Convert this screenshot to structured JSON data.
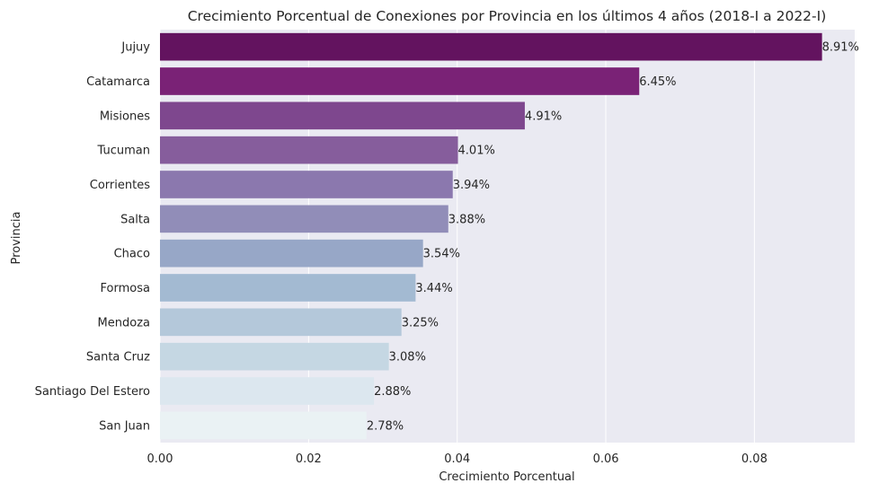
{
  "chart_data": {
    "type": "bar",
    "orientation": "horizontal",
    "title": "Crecimiento Porcentual de Conexiones por Provincia en los últimos 4 años (2018-I a 2022-I)",
    "xlabel": "Crecimiento Porcentual",
    "ylabel": "Provincia",
    "xlim": [
      0,
      0.0935
    ],
    "xticks": [
      0.0,
      0.02,
      0.04,
      0.06,
      0.08
    ],
    "xtick_labels": [
      "0.00",
      "0.02",
      "0.04",
      "0.06",
      "0.08"
    ],
    "grid": true,
    "background": "#eaeaf2",
    "categories": [
      "Jujuy",
      "Catamarca",
      "Misiones",
      "Tucuman",
      "Corrientes",
      "Salta",
      "Chaco",
      "Formosa",
      "Mendoza",
      "Santa Cruz",
      "Santiago Del Estero",
      "San Juan"
    ],
    "values": [
      0.0891,
      0.0645,
      0.0491,
      0.0401,
      0.0394,
      0.0388,
      0.0354,
      0.0344,
      0.0325,
      0.0308,
      0.0288,
      0.0278
    ],
    "labels": [
      "8.91%",
      "6.45%",
      "4.91%",
      "4.01%",
      "3.94%",
      "3.88%",
      "3.54%",
      "3.44%",
      "3.25%",
      "3.08%",
      "2.88%",
      "2.78%"
    ],
    "colors": [
      "#63135f",
      "#7a2276",
      "#7e478e",
      "#865d9c",
      "#8b78ae",
      "#918db8",
      "#97a7c7",
      "#a3bad2",
      "#b4c8da",
      "#c5d7e3",
      "#dce7ef",
      "#eaf2f4"
    ]
  }
}
